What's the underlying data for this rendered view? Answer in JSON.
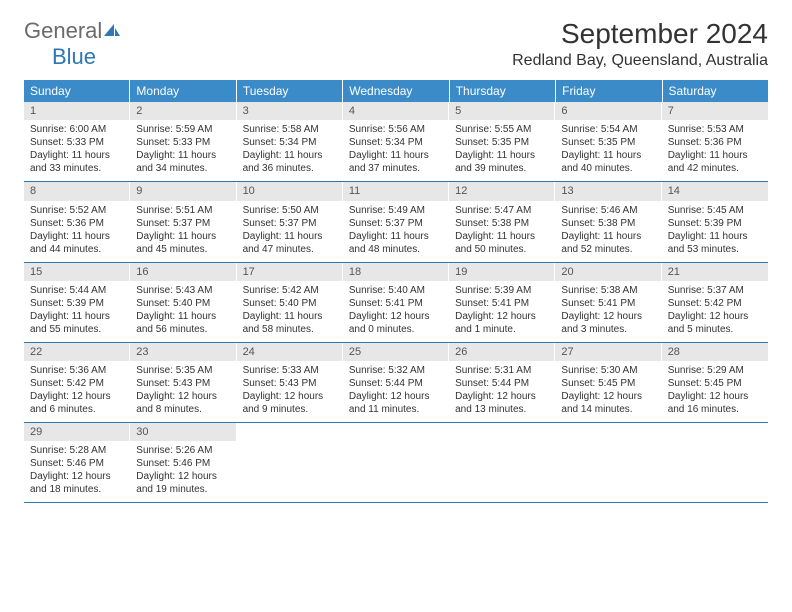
{
  "logo": {
    "text1": "General",
    "text2": "Blue"
  },
  "title": "September 2024",
  "location": "Redland Bay, Queensland, Australia",
  "colors": {
    "header_bg": "#3b8bc9",
    "daynum_bg": "#e7e7e7",
    "row_border": "#2d77b5",
    "logo_gray": "#6b6b6b",
    "logo_blue": "#2d77b5"
  },
  "weekdays": [
    "Sunday",
    "Monday",
    "Tuesday",
    "Wednesday",
    "Thursday",
    "Friday",
    "Saturday"
  ],
  "weeks": [
    [
      {
        "n": "1",
        "sr": "Sunrise: 6:00 AM",
        "ss": "Sunset: 5:33 PM",
        "dl1": "Daylight: 11 hours",
        "dl2": "and 33 minutes."
      },
      {
        "n": "2",
        "sr": "Sunrise: 5:59 AM",
        "ss": "Sunset: 5:33 PM",
        "dl1": "Daylight: 11 hours",
        "dl2": "and 34 minutes."
      },
      {
        "n": "3",
        "sr": "Sunrise: 5:58 AM",
        "ss": "Sunset: 5:34 PM",
        "dl1": "Daylight: 11 hours",
        "dl2": "and 36 minutes."
      },
      {
        "n": "4",
        "sr": "Sunrise: 5:56 AM",
        "ss": "Sunset: 5:34 PM",
        "dl1": "Daylight: 11 hours",
        "dl2": "and 37 minutes."
      },
      {
        "n": "5",
        "sr": "Sunrise: 5:55 AM",
        "ss": "Sunset: 5:35 PM",
        "dl1": "Daylight: 11 hours",
        "dl2": "and 39 minutes."
      },
      {
        "n": "6",
        "sr": "Sunrise: 5:54 AM",
        "ss": "Sunset: 5:35 PM",
        "dl1": "Daylight: 11 hours",
        "dl2": "and 40 minutes."
      },
      {
        "n": "7",
        "sr": "Sunrise: 5:53 AM",
        "ss": "Sunset: 5:36 PM",
        "dl1": "Daylight: 11 hours",
        "dl2": "and 42 minutes."
      }
    ],
    [
      {
        "n": "8",
        "sr": "Sunrise: 5:52 AM",
        "ss": "Sunset: 5:36 PM",
        "dl1": "Daylight: 11 hours",
        "dl2": "and 44 minutes."
      },
      {
        "n": "9",
        "sr": "Sunrise: 5:51 AM",
        "ss": "Sunset: 5:37 PM",
        "dl1": "Daylight: 11 hours",
        "dl2": "and 45 minutes."
      },
      {
        "n": "10",
        "sr": "Sunrise: 5:50 AM",
        "ss": "Sunset: 5:37 PM",
        "dl1": "Daylight: 11 hours",
        "dl2": "and 47 minutes."
      },
      {
        "n": "11",
        "sr": "Sunrise: 5:49 AM",
        "ss": "Sunset: 5:37 PM",
        "dl1": "Daylight: 11 hours",
        "dl2": "and 48 minutes."
      },
      {
        "n": "12",
        "sr": "Sunrise: 5:47 AM",
        "ss": "Sunset: 5:38 PM",
        "dl1": "Daylight: 11 hours",
        "dl2": "and 50 minutes."
      },
      {
        "n": "13",
        "sr": "Sunrise: 5:46 AM",
        "ss": "Sunset: 5:38 PM",
        "dl1": "Daylight: 11 hours",
        "dl2": "and 52 minutes."
      },
      {
        "n": "14",
        "sr": "Sunrise: 5:45 AM",
        "ss": "Sunset: 5:39 PM",
        "dl1": "Daylight: 11 hours",
        "dl2": "and 53 minutes."
      }
    ],
    [
      {
        "n": "15",
        "sr": "Sunrise: 5:44 AM",
        "ss": "Sunset: 5:39 PM",
        "dl1": "Daylight: 11 hours",
        "dl2": "and 55 minutes."
      },
      {
        "n": "16",
        "sr": "Sunrise: 5:43 AM",
        "ss": "Sunset: 5:40 PM",
        "dl1": "Daylight: 11 hours",
        "dl2": "and 56 minutes."
      },
      {
        "n": "17",
        "sr": "Sunrise: 5:42 AM",
        "ss": "Sunset: 5:40 PM",
        "dl1": "Daylight: 11 hours",
        "dl2": "and 58 minutes."
      },
      {
        "n": "18",
        "sr": "Sunrise: 5:40 AM",
        "ss": "Sunset: 5:41 PM",
        "dl1": "Daylight: 12 hours",
        "dl2": "and 0 minutes."
      },
      {
        "n": "19",
        "sr": "Sunrise: 5:39 AM",
        "ss": "Sunset: 5:41 PM",
        "dl1": "Daylight: 12 hours",
        "dl2": "and 1 minute."
      },
      {
        "n": "20",
        "sr": "Sunrise: 5:38 AM",
        "ss": "Sunset: 5:41 PM",
        "dl1": "Daylight: 12 hours",
        "dl2": "and 3 minutes."
      },
      {
        "n": "21",
        "sr": "Sunrise: 5:37 AM",
        "ss": "Sunset: 5:42 PM",
        "dl1": "Daylight: 12 hours",
        "dl2": "and 5 minutes."
      }
    ],
    [
      {
        "n": "22",
        "sr": "Sunrise: 5:36 AM",
        "ss": "Sunset: 5:42 PM",
        "dl1": "Daylight: 12 hours",
        "dl2": "and 6 minutes."
      },
      {
        "n": "23",
        "sr": "Sunrise: 5:35 AM",
        "ss": "Sunset: 5:43 PM",
        "dl1": "Daylight: 12 hours",
        "dl2": "and 8 minutes."
      },
      {
        "n": "24",
        "sr": "Sunrise: 5:33 AM",
        "ss": "Sunset: 5:43 PM",
        "dl1": "Daylight: 12 hours",
        "dl2": "and 9 minutes."
      },
      {
        "n": "25",
        "sr": "Sunrise: 5:32 AM",
        "ss": "Sunset: 5:44 PM",
        "dl1": "Daylight: 12 hours",
        "dl2": "and 11 minutes."
      },
      {
        "n": "26",
        "sr": "Sunrise: 5:31 AM",
        "ss": "Sunset: 5:44 PM",
        "dl1": "Daylight: 12 hours",
        "dl2": "and 13 minutes."
      },
      {
        "n": "27",
        "sr": "Sunrise: 5:30 AM",
        "ss": "Sunset: 5:45 PM",
        "dl1": "Daylight: 12 hours",
        "dl2": "and 14 minutes."
      },
      {
        "n": "28",
        "sr": "Sunrise: 5:29 AM",
        "ss": "Sunset: 5:45 PM",
        "dl1": "Daylight: 12 hours",
        "dl2": "and 16 minutes."
      }
    ],
    [
      {
        "n": "29",
        "sr": "Sunrise: 5:28 AM",
        "ss": "Sunset: 5:46 PM",
        "dl1": "Daylight: 12 hours",
        "dl2": "and 18 minutes."
      },
      {
        "n": "30",
        "sr": "Sunrise: 5:26 AM",
        "ss": "Sunset: 5:46 PM",
        "dl1": "Daylight: 12 hours",
        "dl2": "and 19 minutes."
      },
      null,
      null,
      null,
      null,
      null
    ]
  ]
}
